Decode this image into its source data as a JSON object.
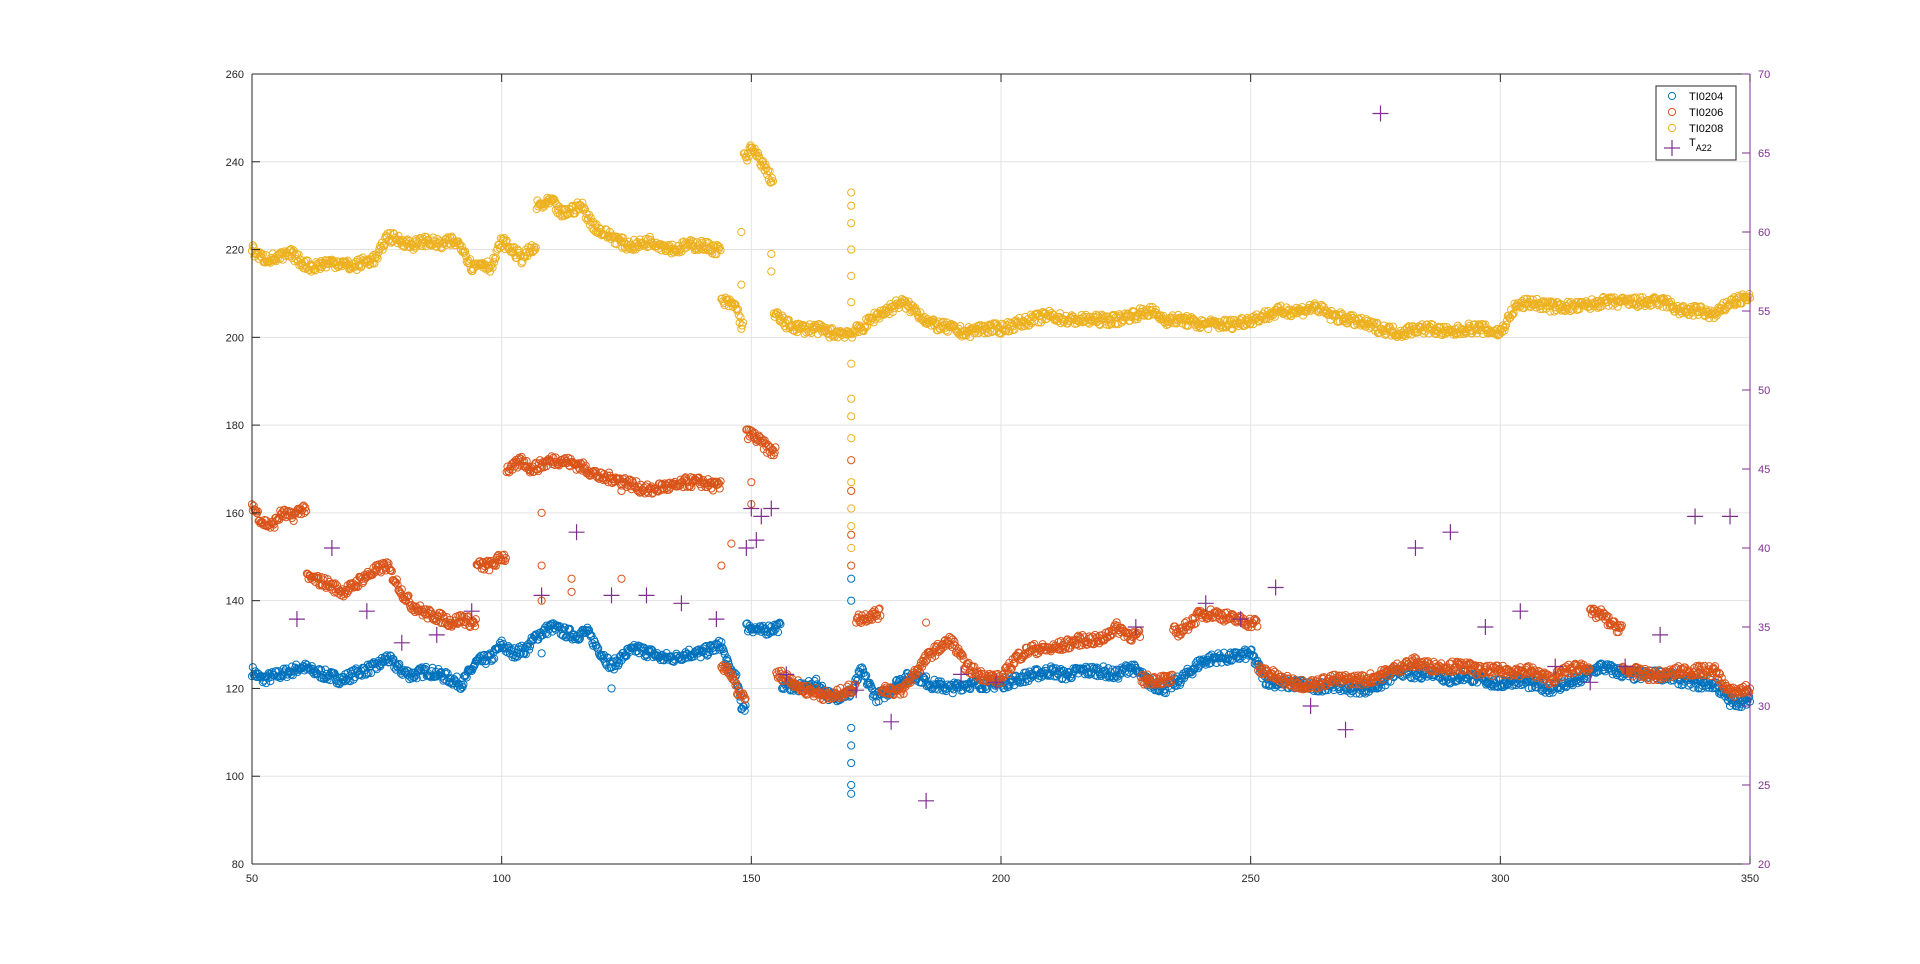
{
  "chart_data": {
    "type": "scatter",
    "title": "",
    "xlabel": "",
    "ylabel": "",
    "ylabel_right": "",
    "xlim": [
      50,
      350
    ],
    "ylim": [
      80,
      260
    ],
    "ylim_right": [
      20,
      70
    ],
    "grid": true,
    "legend_position": "top-right",
    "x_ticks": [
      50,
      100,
      150,
      200,
      250,
      300,
      350
    ],
    "y_ticks": [
      80,
      100,
      120,
      140,
      160,
      180,
      200,
      220,
      240,
      260
    ],
    "y_ticks_right": [
      20,
      25,
      30,
      35,
      40,
      45,
      50,
      55,
      60,
      65,
      70
    ],
    "colors": {
      "TI0204": "#0072BD",
      "TI0206": "#D95319",
      "TI0208": "#EDB120",
      "TA22": "#7E2F8E",
      "grid": "#e3e3e3",
      "axis": "#262626"
    },
    "series": [
      {
        "name": "TI0204",
        "axis": "left",
        "marker": "circle",
        "x": [
          50,
          52,
          55,
          58,
          60,
          62,
          65,
          68,
          70,
          72,
          75,
          77,
          80,
          82,
          85,
          88,
          90,
          92,
          95,
          98,
          100,
          102,
          105,
          107,
          110,
          112,
          115,
          117,
          120,
          122,
          125,
          127,
          130,
          132,
          135,
          137,
          140,
          142,
          144,
          145,
          147,
          148,
          150,
          152,
          155,
          157,
          160,
          163,
          166,
          170,
          172,
          175,
          177,
          180,
          183,
          186,
          190,
          193,
          196,
          200,
          203,
          206,
          210,
          213,
          216,
          220,
          223,
          226,
          230,
          233,
          236,
          240,
          243,
          246,
          250,
          253,
          256,
          260,
          263,
          266,
          270,
          273,
          276,
          280,
          283,
          286,
          290,
          293,
          296,
          300,
          303,
          306,
          310,
          313,
          316,
          320,
          323,
          326,
          330,
          333,
          336,
          340,
          343,
          346,
          350
        ],
        "y": [
          124,
          122,
          123,
          124,
          125,
          124,
          123,
          122,
          123,
          124,
          125,
          127,
          124,
          123,
          124,
          123,
          122,
          121,
          126,
          127,
          130,
          128,
          129,
          132,
          134,
          133,
          132,
          133,
          128,
          125,
          128,
          129,
          128,
          127,
          127,
          128,
          128,
          129,
          130,
          126,
          122,
          116,
          134,
          133,
          134,
          121,
          120,
          121,
          118,
          119,
          124,
          118,
          119,
          122,
          123,
          121,
          120,
          121,
          121,
          121,
          122,
          123,
          124,
          123,
          124,
          124,
          123,
          125,
          121,
          120,
          122,
          126,
          127,
          127,
          128,
          122,
          121,
          121,
          120,
          121,
          120,
          120,
          121,
          124,
          123,
          124,
          122,
          123,
          122,
          121,
          122,
          121,
          120,
          121,
          122,
          125,
          124,
          123,
          123,
          123,
          122,
          121,
          121,
          117,
          117
        ],
        "outliers": [
          [
            170,
            96
          ],
          [
            170,
            98
          ],
          [
            170,
            103
          ],
          [
            170,
            107
          ],
          [
            170,
            111
          ],
          [
            170,
            140
          ],
          [
            170,
            145
          ],
          [
            122,
            120
          ],
          [
            108,
            128
          ]
        ]
      },
      {
        "name": "TI0206",
        "axis": "left",
        "marker": "circle",
        "x": [
          50,
          52,
          54,
          56,
          58,
          60,
          62,
          65,
          68,
          70,
          72,
          75,
          77,
          80,
          82,
          85,
          88,
          90,
          92,
          94,
          96,
          98,
          100,
          102,
          104,
          106,
          108,
          110,
          112,
          115,
          117,
          120,
          122,
          125,
          127,
          130,
          132,
          135,
          137,
          140,
          143,
          145,
          147,
          148,
          150,
          152,
          154,
          156,
          158,
          160,
          163,
          166,
          170,
          172,
          175,
          177,
          180,
          183,
          186,
          190,
          193,
          196,
          200,
          203,
          206,
          210,
          213,
          216,
          220,
          223,
          226,
          230,
          233,
          236,
          240,
          243,
          246,
          250,
          253,
          256,
          260,
          263,
          266,
          270,
          273,
          276,
          280,
          283,
          286,
          290,
          293,
          296,
          300,
          303,
          306,
          310,
          313,
          316,
          320,
          323,
          326,
          330,
          333,
          336,
          340,
          343,
          346,
          350
        ],
        "y": [
          162,
          158,
          157,
          160,
          159,
          161,
          145,
          144,
          142,
          143,
          145,
          147,
          148,
          142,
          139,
          137,
          136,
          135,
          136,
          135,
          148,
          148,
          150,
          170,
          172,
          170,
          171,
          172,
          172,
          171,
          170,
          168,
          168,
          167,
          166,
          165,
          166,
          166,
          167,
          167,
          166,
          125,
          120,
          118,
          178,
          176,
          174,
          123,
          122,
          120,
          119,
          118,
          120,
          136,
          137,
          120,
          119,
          124,
          128,
          131,
          125,
          123,
          122,
          127,
          129,
          129,
          130,
          131,
          131,
          134,
          132,
          122,
          122,
          133,
          137,
          137,
          136,
          135,
          124,
          122,
          121,
          121,
          122,
          122,
          122,
          123,
          125,
          126,
          125,
          125,
          125,
          124,
          124,
          124,
          124,
          122,
          124,
          125,
          137,
          134,
          124,
          123,
          123,
          124,
          124,
          124,
          119,
          120
        ],
        "outliers": [
          [
            108,
            140
          ],
          [
            108,
            148
          ],
          [
            108,
            160
          ],
          [
            114,
            145
          ],
          [
            114,
            142
          ],
          [
            124,
            145
          ],
          [
            124,
            165
          ],
          [
            144,
            148
          ],
          [
            146,
            153
          ],
          [
            150,
            162
          ],
          [
            150,
            167
          ],
          [
            170,
            155
          ],
          [
            170,
            165
          ],
          [
            170,
            172
          ],
          [
            170,
            148
          ],
          [
            185,
            135
          ]
        ]
      },
      {
        "name": "TI0208",
        "axis": "left",
        "marker": "circle",
        "x": [
          50,
          52,
          55,
          58,
          60,
          62,
          65,
          68,
          70,
          72,
          75,
          77,
          80,
          82,
          85,
          88,
          90,
          92,
          94,
          96,
          98,
          100,
          102,
          104,
          106,
          108,
          110,
          112,
          114,
          116,
          118,
          120,
          122,
          125,
          127,
          130,
          132,
          135,
          137,
          140,
          143,
          145,
          147,
          148,
          149,
          150,
          152,
          154,
          155,
          157,
          160,
          163,
          166,
          170,
          172,
          175,
          177,
          180,
          183,
          186,
          190,
          193,
          196,
          200,
          203,
          206,
          210,
          213,
          216,
          220,
          223,
          226,
          230,
          233,
          236,
          240,
          243,
          246,
          250,
          253,
          256,
          260,
          263,
          266,
          270,
          273,
          276,
          280,
          283,
          286,
          290,
          293,
          296,
          300,
          303,
          306,
          310,
          313,
          316,
          320,
          323,
          326,
          330,
          333,
          336,
          340,
          343,
          346,
          350
        ],
        "y": [
          220,
          218,
          218,
          219,
          217,
          216,
          217,
          217,
          216,
          217,
          218,
          223,
          222,
          221,
          222,
          221,
          222,
          221,
          216,
          217,
          216,
          222,
          220,
          218,
          220,
          230,
          231,
          228,
          229,
          230,
          226,
          224,
          223,
          221,
          221,
          222,
          221,
          220,
          221,
          221,
          220,
          208,
          207,
          203,
          241,
          243,
          240,
          236,
          205,
          203,
          202,
          202,
          201,
          201,
          202,
          205,
          206,
          208,
          206,
          203,
          202,
          201,
          202,
          202,
          203,
          204,
          205,
          204,
          204,
          204,
          204,
          205,
          206,
          204,
          204,
          203,
          203,
          203,
          204,
          205,
          206,
          206,
          207,
          205,
          204,
          203,
          202,
          201,
          202,
          202,
          201,
          202,
          202,
          201,
          207,
          208,
          207,
          207,
          207,
          208,
          208,
          208,
          208,
          208,
          206,
          206,
          205,
          208,
          209
        ],
        "outliers": [
          [
            170,
            233
          ],
          [
            170,
            230
          ],
          [
            170,
            226
          ],
          [
            170,
            220
          ],
          [
            170,
            214
          ],
          [
            170,
            208
          ],
          [
            170,
            194
          ],
          [
            170,
            186
          ],
          [
            170,
            182
          ],
          [
            170,
            177
          ],
          [
            170,
            167
          ],
          [
            170,
            161
          ],
          [
            170,
            157
          ],
          [
            170,
            152
          ],
          [
            148,
            224
          ],
          [
            148,
            212
          ],
          [
            154,
            219
          ],
          [
            154,
            215
          ]
        ]
      },
      {
        "name": "T_A22",
        "display_name": "T",
        "subscript": "A22",
        "axis": "right",
        "marker": "plus",
        "x": [
          59,
          66,
          73,
          80,
          87,
          94,
          108,
          115,
          122,
          129,
          136,
          143,
          149,
          150,
          151,
          152,
          154,
          157,
          171,
          178,
          185,
          192,
          199,
          227,
          241,
          248,
          255,
          262,
          269,
          276,
          283,
          290,
          297,
          304,
          311,
          318,
          325,
          332,
          339,
          346
        ],
        "y": [
          35.5,
          40,
          36,
          34,
          34.5,
          36,
          37,
          41,
          37,
          37,
          36.5,
          35.5,
          40,
          42.5,
          40.5,
          42,
          42.5,
          32,
          31,
          29,
          24,
          32,
          31.5,
          35,
          36.5,
          35.5,
          37.5,
          30,
          28.5,
          67.5,
          40,
          41,
          35,
          36,
          32.5,
          31.5,
          32.5,
          34.5,
          42,
          42
        ]
      }
    ]
  }
}
